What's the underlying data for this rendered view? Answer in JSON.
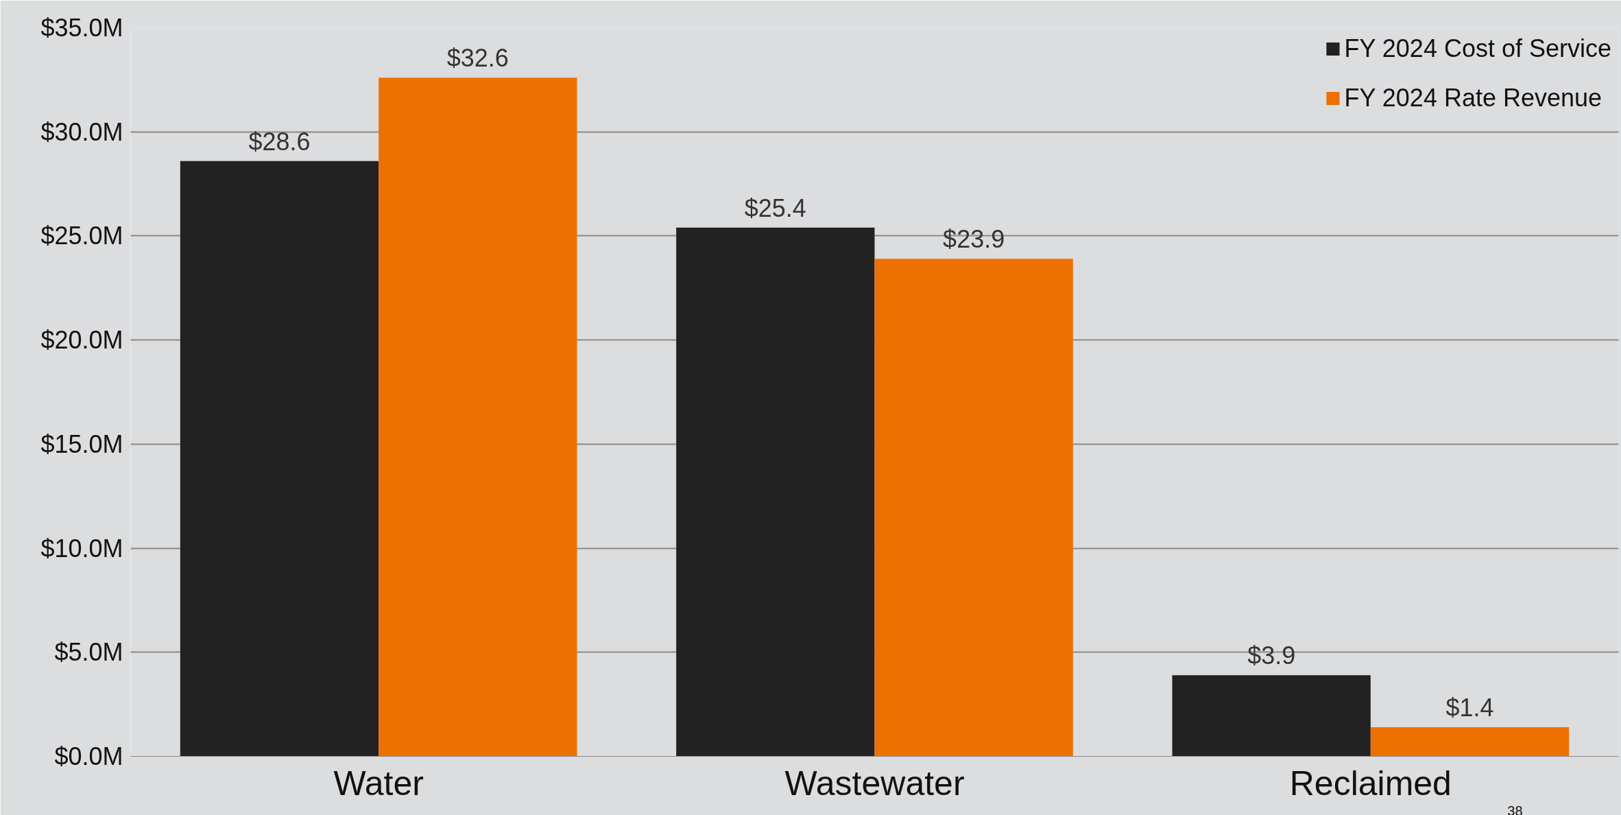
{
  "chart_data": {
    "type": "bar",
    "categories": [
      "Water",
      "Wastewater",
      "Reclaimed"
    ],
    "series": [
      {
        "name": "FY 2024 Cost of Service",
        "color": "#222222",
        "values": [
          28.6,
          25.4,
          3.9
        ],
        "value_labels": [
          "$28.6",
          "$25.4",
          "$3.9"
        ]
      },
      {
        "name": "FY 2024 Rate Revenue",
        "color": "#ee7100",
        "values": [
          32.6,
          23.9,
          1.4
        ],
        "value_labels": [
          "$32.6",
          "$23.9",
          "$1.4"
        ]
      }
    ],
    "ylim": [
      0,
      35
    ],
    "yticks": [
      {
        "value": 0,
        "label": "$0.0M"
      },
      {
        "value": 5,
        "label": "$5.0M"
      },
      {
        "value": 10,
        "label": "$10.0M"
      },
      {
        "value": 15,
        "label": "$15.0M"
      },
      {
        "value": 20,
        "label": "$20.0M"
      },
      {
        "value": 25,
        "label": "$25.0M"
      },
      {
        "value": 30,
        "label": "$30.0M"
      },
      {
        "value": 35,
        "label": "$35.0M"
      }
    ],
    "grid": "y",
    "legend": "top right",
    "annotations": [
      "38"
    ]
  }
}
